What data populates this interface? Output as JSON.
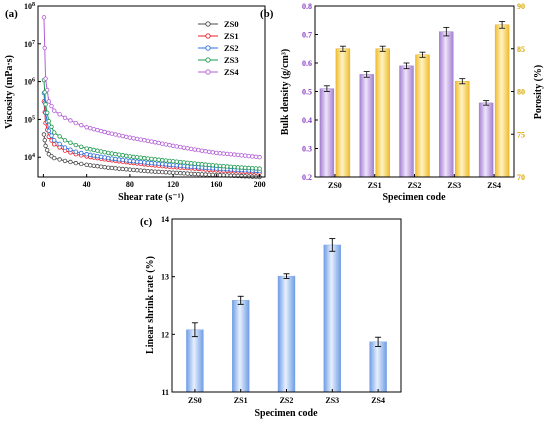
{
  "colors": {
    "zs0": "#4a4a4a",
    "zs1": "#e8202a",
    "zs2": "#2b6fe0",
    "zs3": "#1f9a50",
    "zs4": "#b35fd6",
    "density_bar": "#c9a6e6",
    "porosity_bar": "#f6cd57",
    "density_axis": "#8a3fc4",
    "porosity_axis": "#d9a800",
    "shrink_bar": "#8fb3ec"
  },
  "chart_data": [
    {
      "type": "line",
      "panel_label": "(a)",
      "xlabel": "Shear rate (s⁻¹)",
      "ylabel": "Viscosity (mPa·s)",
      "xlim": [
        -5,
        205
      ],
      "ylim": [
        3000,
        100000000
      ],
      "yscale": "log",
      "x_ticks": [
        0,
        40,
        80,
        120,
        160,
        200
      ],
      "y_ticks": [
        {
          "value": 10000,
          "base": "10",
          "exp": "4"
        },
        {
          "value": 100000,
          "base": "10",
          "exp": "5"
        },
        {
          "value": 1000000,
          "base": "10",
          "exp": "6"
        },
        {
          "value": 10000000,
          "base": "10",
          "exp": "7"
        },
        {
          "value": 100000000,
          "base": "10",
          "exp": "8"
        }
      ],
      "legend_position": "top-right",
      "series": [
        {
          "name": "ZS0",
          "color_key": "zs0",
          "x": [
            0.5,
            2,
            5,
            10,
            20,
            30,
            40,
            60,
            80,
            100,
            120,
            140,
            160,
            180,
            200
          ],
          "y": [
            40000,
            20000,
            12000,
            9500,
            8000,
            7000,
            6300,
            5300,
            4700,
            4200,
            3900,
            3600,
            3400,
            3200,
            3000
          ]
        },
        {
          "name": "ZS1",
          "color_key": "zs1",
          "x": [
            0.5,
            2,
            5,
            10,
            20,
            30,
            40,
            60,
            80,
            100,
            120,
            140,
            160,
            180,
            200
          ],
          "y": [
            300000,
            80000,
            35000,
            22000,
            15000,
            12000,
            10500,
            8500,
            7200,
            6200,
            5500,
            5000,
            4500,
            4200,
            3900
          ]
        },
        {
          "name": "ZS2",
          "color_key": "zs2",
          "x": [
            0.5,
            2,
            5,
            10,
            20,
            30,
            40,
            60,
            80,
            100,
            120,
            140,
            160,
            180,
            200
          ],
          "y": [
            500000,
            150000,
            50000,
            28000,
            18000,
            14000,
            12000,
            9500,
            8000,
            7000,
            6200,
            5500,
            5000,
            4600,
            4300
          ]
        },
        {
          "name": "ZS3",
          "color_key": "zs3",
          "x": [
            0.5,
            2,
            5,
            10,
            20,
            30,
            40,
            60,
            80,
            100,
            120,
            140,
            160,
            180,
            200
          ],
          "y": [
            1100000,
            250000,
            90000,
            45000,
            28000,
            21000,
            17000,
            13000,
            10500,
            9000,
            7800,
            6800,
            6000,
            5400,
            5000
          ]
        },
        {
          "name": "ZS4",
          "color_key": "zs4",
          "x": [
            0.5,
            2,
            5,
            10,
            20,
            30,
            40,
            60,
            80,
            100,
            120,
            140,
            160,
            180,
            200
          ],
          "y": [
            50000000,
            1200000,
            300000,
            170000,
            110000,
            80000,
            62000,
            44000,
            33000,
            26000,
            20000,
            16000,
            13000,
            11500,
            10000
          ]
        }
      ]
    },
    {
      "type": "bar",
      "panel_label": "(b)",
      "xlabel": "Specimen code",
      "ylabel_left": "Bulk density (g/cm³)",
      "ylabel_right": "Porosity (%)",
      "categories": [
        "ZS0",
        "ZS1",
        "ZS2",
        "ZS3",
        "ZS4"
      ],
      "ylim_left": [
        0.2,
        0.8
      ],
      "ylim_right": [
        70,
        90
      ],
      "y_ticks_left": [
        "0.2",
        "0.3",
        "0.4",
        "0.5",
        "0.6",
        "0.7",
        "0.8"
      ],
      "y_ticks_right": [
        "70",
        "75",
        "80",
        "85",
        "90"
      ],
      "series": [
        {
          "name": "Bulk density",
          "axis": "left",
          "color_key": "density_bar",
          "values": [
            0.51,
            0.56,
            0.59,
            0.71,
            0.46
          ],
          "errors": [
            0.01,
            0.01,
            0.01,
            0.015,
            0.008
          ]
        },
        {
          "name": "Porosity",
          "axis": "right",
          "color_key": "porosity_bar",
          "values": [
            85.0,
            85.0,
            84.3,
            81.2,
            87.8
          ],
          "errors": [
            0.3,
            0.3,
            0.3,
            0.3,
            0.4
          ]
        }
      ]
    },
    {
      "type": "bar",
      "panel_label": "(c)",
      "xlabel": "Specimen code",
      "ylabel": "Linear shrink rate (%)",
      "categories": [
        "ZS0",
        "ZS1",
        "ZS2",
        "ZS3",
        "ZS4"
      ],
      "ylim": [
        11,
        14
      ],
      "y_ticks": [
        "11",
        "12",
        "13",
        "14"
      ],
      "series": [
        {
          "color_key": "shrink_bar",
          "values": [
            12.08,
            12.59,
            13.01,
            13.55,
            11.87
          ],
          "errors": [
            0.12,
            0.07,
            0.04,
            0.11,
            0.08
          ]
        }
      ]
    }
  ]
}
